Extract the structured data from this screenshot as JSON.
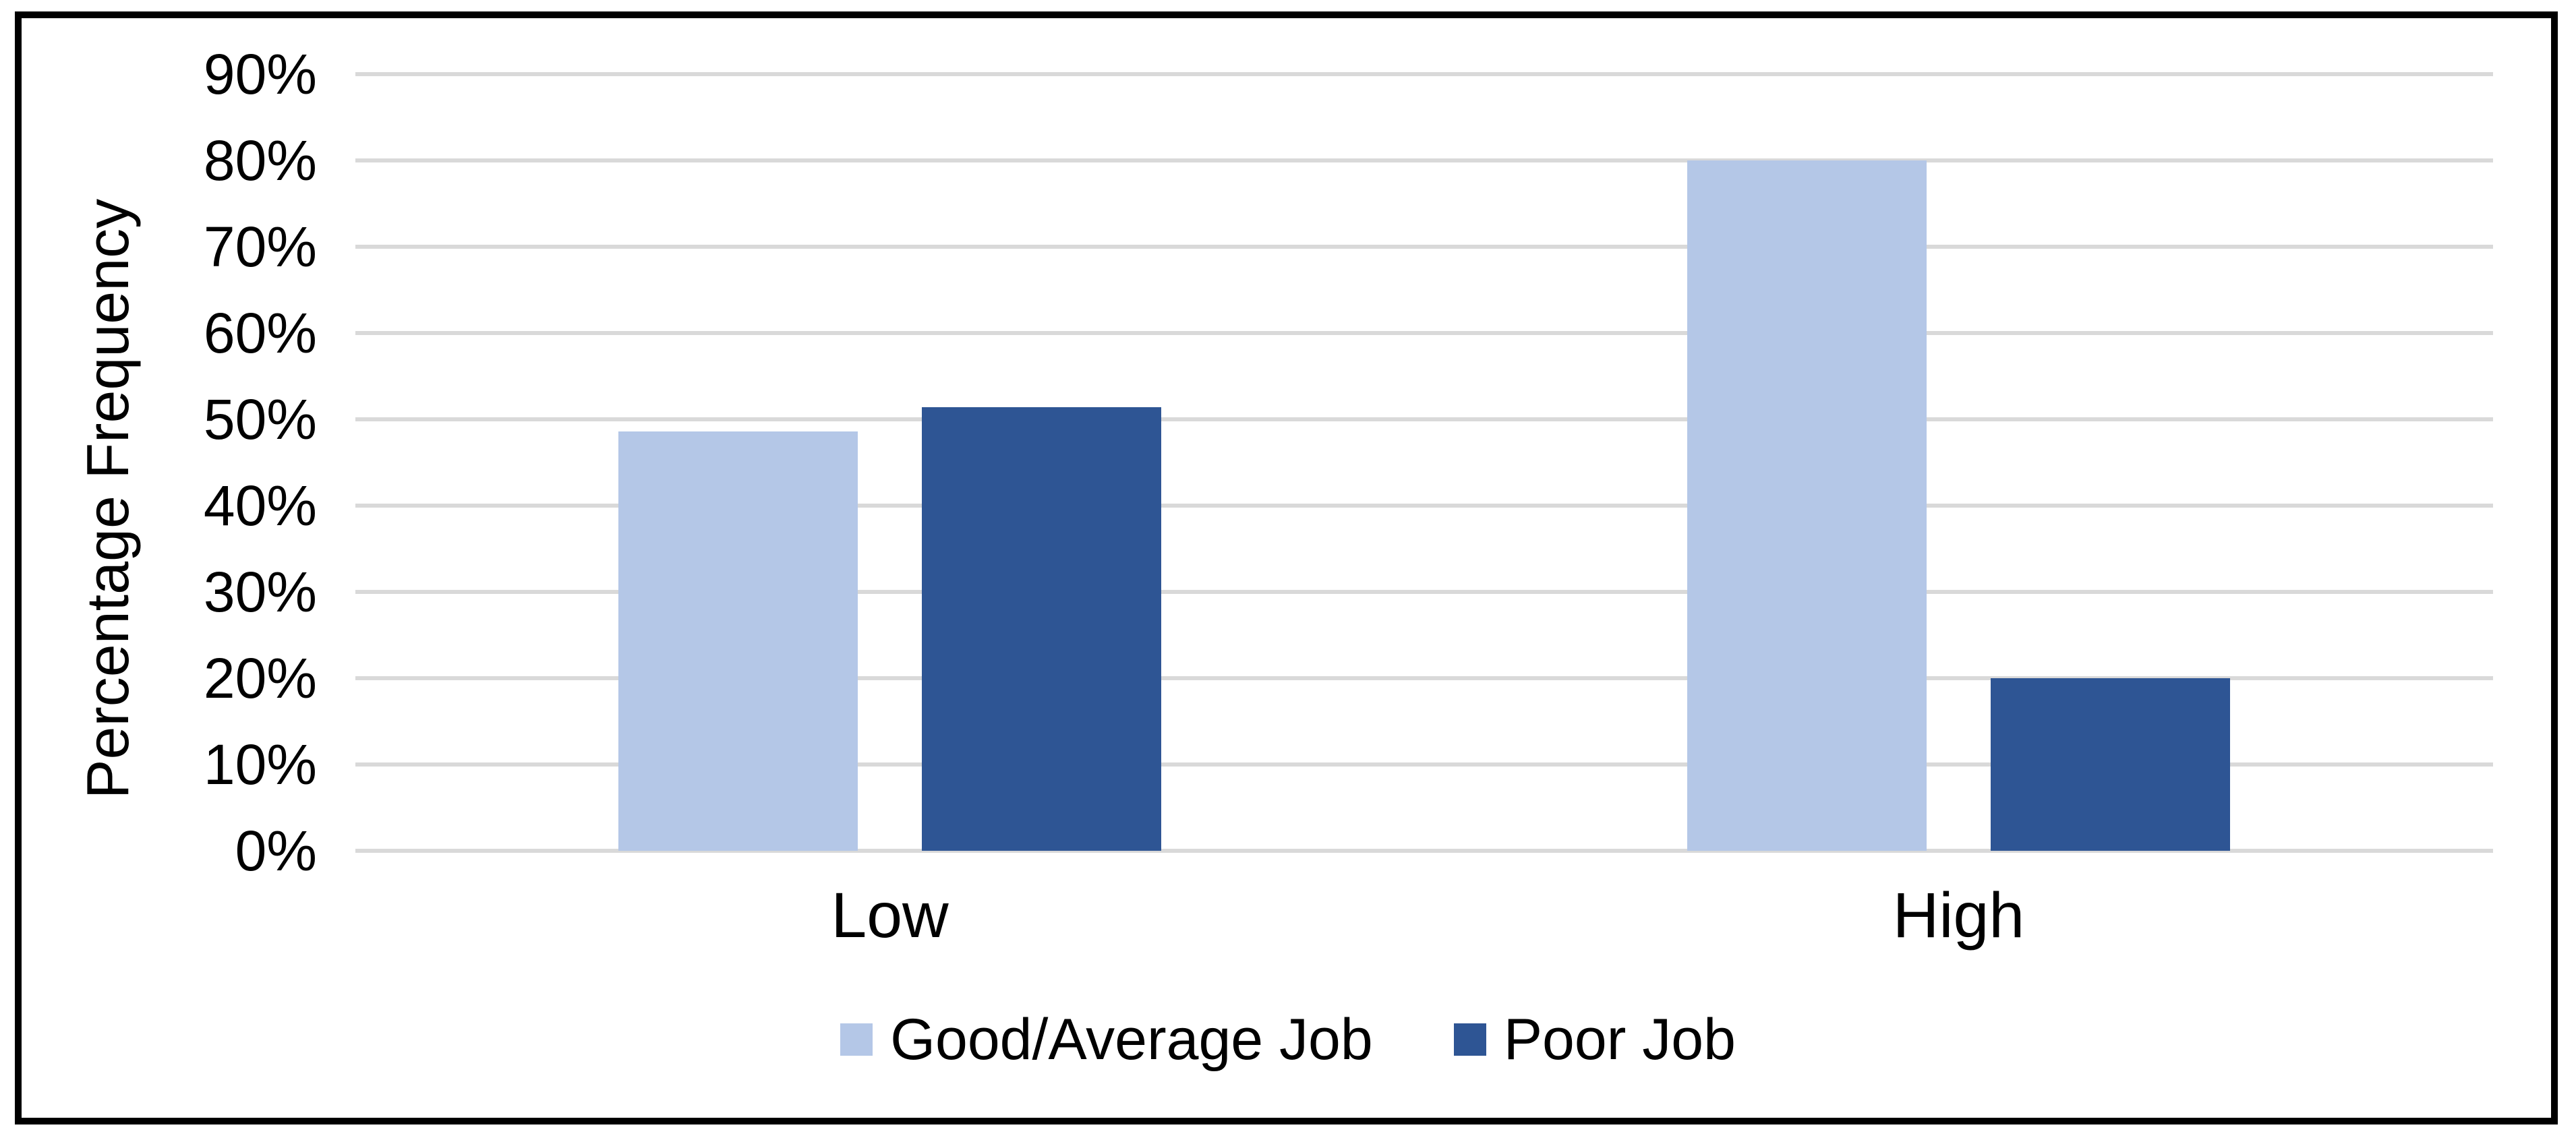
{
  "chart_data": {
    "type": "bar",
    "title": "",
    "categories": [
      "Low",
      "High"
    ],
    "series": [
      {
        "name": "Good/Average Job",
        "color": "#B4C7E7",
        "values": [
          48.6,
          80
        ]
      },
      {
        "name": "Poor Job",
        "color": "#2E5594",
        "values": [
          51.4,
          20
        ]
      }
    ],
    "xlabel": "",
    "ylabel": "Percentage Frequency",
    "ylim": [
      0,
      90
    ],
    "ytick_step": 10,
    "yticks": [
      {
        "label": "90%",
        "value": 90
      },
      {
        "label": "80%",
        "value": 80
      },
      {
        "label": "70%",
        "value": 70
      },
      {
        "label": "60%",
        "value": 60
      },
      {
        "label": "50%",
        "value": 50
      },
      {
        "label": "40%",
        "value": 40
      },
      {
        "label": "30%",
        "value": 30
      },
      {
        "label": "20%",
        "value": 20
      },
      {
        "label": "10%",
        "value": 10
      },
      {
        "label": "0%",
        "value": 0
      }
    ],
    "grid": "horizontal",
    "gridline_color": "#D9D9D9",
    "legend_position": "bottom",
    "frame_border_color": "#000000",
    "background_color": "#FFFFFF"
  }
}
